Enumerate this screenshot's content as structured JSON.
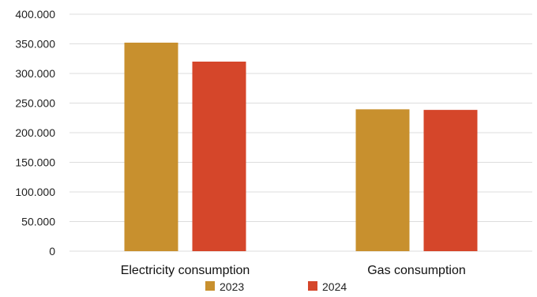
{
  "chart_data": {
    "type": "bar",
    "categories": [
      "Electricity consumption",
      "Gas consumption"
    ],
    "series": [
      {
        "name": "2023",
        "color": "#c8902e",
        "values": [
          352000,
          239500
        ]
      },
      {
        "name": "2024",
        "color": "#d5462a",
        "values": [
          320000,
          238500
        ]
      }
    ],
    "ylim": [
      0,
      400000
    ],
    "yticks": [
      {
        "value": 0,
        "label": "0"
      },
      {
        "value": 50000,
        "label": "50.000"
      },
      {
        "value": 100000,
        "label": "100.000"
      },
      {
        "value": 150000,
        "label": "150.000"
      },
      {
        "value": 200000,
        "label": "200.000"
      },
      {
        "value": 250000,
        "label": "250.000"
      },
      {
        "value": 300000,
        "label": "300.000"
      },
      {
        "value": 350000,
        "label": "350.000"
      },
      {
        "value": 400000,
        "label": "400.000"
      }
    ],
    "grid": true,
    "legend_position": "bottom",
    "gridline_color": "#dddddd"
  }
}
